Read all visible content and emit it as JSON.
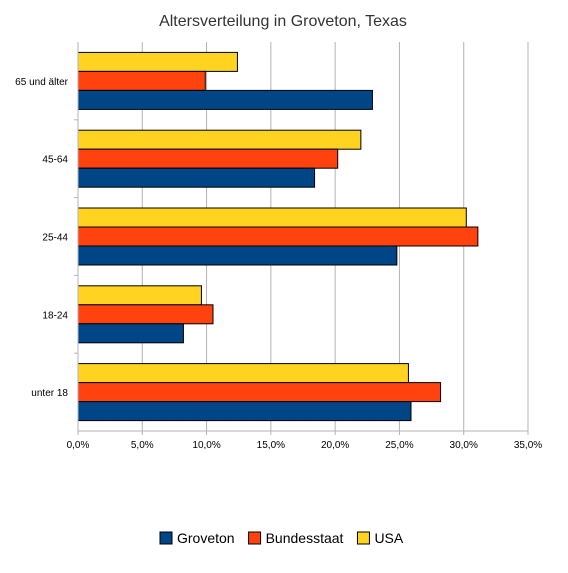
{
  "chart_data": {
    "type": "bar",
    "orientation": "horizontal",
    "title": "Altersverteilung in Groveton, Texas",
    "categories": [
      "65 und älter",
      "45-64",
      "25-44",
      "18-24",
      "unter 18"
    ],
    "series": [
      {
        "name": "USA",
        "color": "#ffd320",
        "values": [
          12.4,
          22.0,
          30.2,
          9.6,
          25.7
        ]
      },
      {
        "name": "Bundesstaat",
        "color": "#ff420e",
        "values": [
          9.9,
          20.2,
          31.1,
          10.5,
          28.2
        ]
      },
      {
        "name": "Groveton",
        "color": "#004586",
        "values": [
          22.9,
          18.4,
          24.8,
          8.2,
          25.9
        ]
      }
    ],
    "legend_order": [
      "Groveton",
      "Bundesstaat",
      "USA"
    ],
    "xlim": [
      0,
      35
    ],
    "xticks": [
      0,
      5,
      10,
      15,
      20,
      25,
      30,
      35
    ],
    "xtick_labels": [
      "0,0%",
      "5,0%",
      "10,0%",
      "15,0%",
      "20,0%",
      "25,0%",
      "30,0%",
      "35,0%"
    ],
    "grid": true,
    "legend_position": "bottom"
  }
}
